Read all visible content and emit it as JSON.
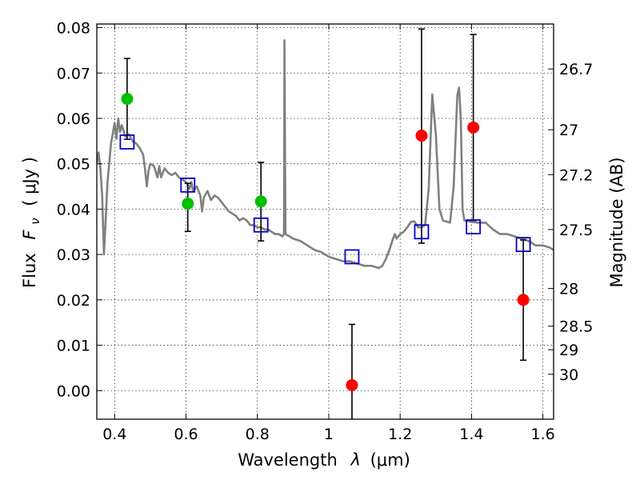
{
  "chart_data": {
    "type": "scatter",
    "x_axis": {
      "label": "Wavelength",
      "label_symbol": "λ",
      "label_unit": "(μm)",
      "range": [
        0.35,
        1.63
      ],
      "ticks": [
        0.4,
        0.6,
        0.8,
        1.0,
        1.2,
        1.4,
        1.6
      ],
      "tick_labels": [
        "0.4",
        "0.6",
        "0.8",
        "1",
        "1.2",
        "1.4",
        "1.6"
      ]
    },
    "y_axis": {
      "label": "Flux",
      "label_symbol": "F",
      "label_subscript": "ν",
      "label_unit": "( μJy )",
      "range": [
        -0.0063,
        0.0808
      ],
      "ticks": [
        0.0,
        0.01,
        0.02,
        0.03,
        0.04,
        0.05,
        0.06,
        0.07,
        0.08
      ],
      "tick_labels": [
        "0.00",
        "0.01",
        "0.02",
        "0.03",
        "0.04",
        "0.05",
        "0.06",
        "0.07",
        "0.08"
      ]
    },
    "y2_axis": {
      "label": "Magnitude (AB)",
      "ticks_flux": [
        0.0709,
        0.0575,
        0.0476,
        0.0355,
        0.0225,
        0.0142,
        0.009,
        0.0036
      ],
      "tick_labels": [
        "26.7",
        "27",
        "27.2",
        "27.5",
        "28",
        "28.5",
        "29",
        "30"
      ]
    },
    "grid": true,
    "colors": {
      "model": "#808080",
      "detected": "#00c000",
      "marginal": "#ff0000",
      "model_box": "#0000cc",
      "errorbar": "#000000"
    },
    "series": [
      {
        "kind": "model_spectrum",
        "color": "#808080",
        "points": [
          [
            0.35,
            0.05
          ],
          [
            0.355,
            0.0525
          ],
          [
            0.36,
            0.049
          ],
          [
            0.365,
            0.043
          ],
          [
            0.37,
            0.03
          ],
          [
            0.375,
            0.038
          ],
          [
            0.38,
            0.046
          ],
          [
            0.39,
            0.0545
          ],
          [
            0.4,
            0.059
          ],
          [
            0.405,
            0.0555
          ],
          [
            0.41,
            0.06
          ],
          [
            0.415,
            0.057
          ],
          [
            0.42,
            0.0585
          ],
          [
            0.43,
            0.056
          ],
          [
            0.44,
            0.0565
          ],
          [
            0.45,
            0.055
          ],
          [
            0.46,
            0.0545
          ],
          [
            0.47,
            0.0535
          ],
          [
            0.48,
            0.052
          ],
          [
            0.485,
            0.049
          ],
          [
            0.49,
            0.045
          ],
          [
            0.495,
            0.0485
          ],
          [
            0.5,
            0.05
          ],
          [
            0.51,
            0.0495
          ],
          [
            0.52,
            0.047
          ],
          [
            0.525,
            0.0495
          ],
          [
            0.53,
            0.047
          ],
          [
            0.54,
            0.049
          ],
          [
            0.55,
            0.048
          ],
          [
            0.56,
            0.0475
          ],
          [
            0.57,
            0.048
          ],
          [
            0.58,
            0.047
          ],
          [
            0.59,
            0.0465
          ],
          [
            0.6,
            0.046
          ],
          [
            0.61,
            0.0445
          ],
          [
            0.615,
            0.046
          ],
          [
            0.62,
            0.044
          ],
          [
            0.625,
            0.0445
          ],
          [
            0.63,
            0.045
          ],
          [
            0.64,
            0.043
          ],
          [
            0.645,
            0.0395
          ],
          [
            0.65,
            0.0425
          ],
          [
            0.66,
            0.044
          ],
          [
            0.67,
            0.042
          ],
          [
            0.68,
            0.043
          ],
          [
            0.69,
            0.0425
          ],
          [
            0.7,
            0.0415
          ],
          [
            0.71,
            0.0405
          ],
          [
            0.72,
            0.0395
          ],
          [
            0.73,
            0.039
          ],
          [
            0.74,
            0.0385
          ],
          [
            0.75,
            0.0375
          ],
          [
            0.76,
            0.038
          ],
          [
            0.77,
            0.0375
          ],
          [
            0.78,
            0.0365
          ],
          [
            0.79,
            0.0365
          ],
          [
            0.8,
            0.036
          ],
          [
            0.81,
            0.036
          ],
          [
            0.82,
            0.0355
          ],
          [
            0.83,
            0.0355
          ],
          [
            0.84,
            0.035
          ],
          [
            0.85,
            0.0345
          ],
          [
            0.86,
            0.0345
          ],
          [
            0.87,
            0.034
          ],
          [
            0.8745,
            0.0345
          ],
          [
            0.876,
            0.0772
          ],
          [
            0.8785,
            0.0345
          ],
          [
            0.89,
            0.034
          ],
          [
            0.9,
            0.0335
          ],
          [
            0.92,
            0.033
          ],
          [
            0.94,
            0.032
          ],
          [
            0.96,
            0.031
          ],
          [
            0.98,
            0.0305
          ],
          [
            1.0,
            0.0295
          ],
          [
            1.02,
            0.029
          ],
          [
            1.04,
            0.0285
          ],
          [
            1.06,
            0.0285
          ],
          [
            1.08,
            0.028
          ],
          [
            1.1,
            0.0275
          ],
          [
            1.12,
            0.0275
          ],
          [
            1.14,
            0.027
          ],
          [
            1.15,
            0.0275
          ],
          [
            1.16,
            0.029
          ],
          [
            1.17,
            0.031
          ],
          [
            1.18,
            0.0335
          ],
          [
            1.185,
            0.0345
          ],
          [
            1.19,
            0.0335
          ],
          [
            1.2,
            0.0345
          ],
          [
            1.21,
            0.035
          ],
          [
            1.22,
            0.036
          ],
          [
            1.23,
            0.0372
          ],
          [
            1.24,
            0.0373
          ],
          [
            1.25,
            0.036
          ],
          [
            1.26,
            0.036
          ],
          [
            1.27,
            0.0365
          ],
          [
            1.28,
            0.0445
          ],
          [
            1.29,
            0.0653
          ],
          [
            1.3,
            0.0565
          ],
          [
            1.31,
            0.04
          ],
          [
            1.32,
            0.0375
          ],
          [
            1.34,
            0.037
          ],
          [
            1.35,
            0.045
          ],
          [
            1.36,
            0.065
          ],
          [
            1.365,
            0.0668
          ],
          [
            1.37,
            0.06
          ],
          [
            1.375,
            0.04
          ],
          [
            1.38,
            0.0375
          ],
          [
            1.4,
            0.0372
          ],
          [
            1.42,
            0.037
          ],
          [
            1.44,
            0.037
          ],
          [
            1.46,
            0.0355
          ],
          [
            1.48,
            0.0345
          ],
          [
            1.5,
            0.0345
          ],
          [
            1.52,
            0.034
          ],
          [
            1.54,
            0.0335
          ],
          [
            1.56,
            0.033
          ],
          [
            1.58,
            0.032
          ],
          [
            1.6,
            0.032
          ],
          [
            1.62,
            0.0315
          ],
          [
            1.63,
            0.031
          ]
        ]
      },
      {
        "kind": "model_band_fluxes",
        "marker": "open-square",
        "color": "#0000cc",
        "x": [
          0.435,
          0.605,
          0.81,
          1.065,
          1.26,
          1.405,
          1.545
        ],
        "y": [
          0.0548,
          0.0453,
          0.0365,
          0.0295,
          0.035,
          0.0361,
          0.0322
        ]
      },
      {
        "kind": "observed_detections",
        "marker": "filled-circle",
        "color": "#00c000",
        "x": [
          0.435,
          0.605,
          0.81
        ],
        "y": [
          0.0643,
          0.0412,
          0.0417
        ],
        "yerr": [
          [
            0.0554,
            0.0732
          ],
          [
            0.0351,
            0.0457
          ],
          [
            0.033,
            0.0503
          ]
        ]
      },
      {
        "kind": "observed_marginal",
        "marker": "filled-circle",
        "color": "#ff0000",
        "x": [
          1.065,
          1.26,
          1.405,
          1.545
        ],
        "y": [
          0.0012,
          0.0562,
          0.058,
          0.02
        ],
        "yerr": [
          [
            -0.0065,
            0.0146
          ],
          [
            0.0325,
            0.0797
          ],
          [
            0.0375,
            0.0785
          ],
          [
            0.0067,
            0.0332
          ]
        ]
      }
    ]
  }
}
